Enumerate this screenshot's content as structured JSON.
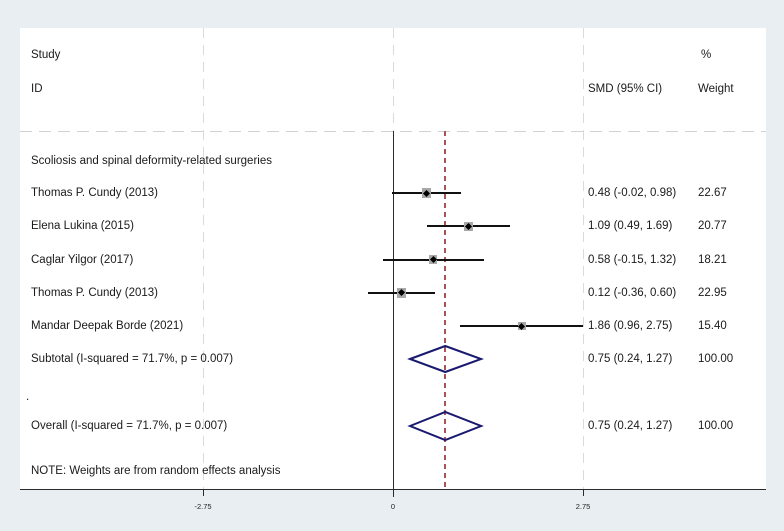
{
  "header": {
    "study_label": "Study",
    "id_label": "ID",
    "smd_ci_label": "SMD (95% CI)",
    "percent_label": "%",
    "weight_label": "Weight"
  },
  "note": {
    "text": "NOTE: Weights are from random effects analysis"
  },
  "colors": {
    "background": "#e8eef2",
    "plot_background": "#ffffff",
    "axis": "#2b2b2b",
    "gridline": "#d7dbde",
    "ci_line": "#111111",
    "weight_box": "#a8a8a8",
    "marker": "#000000",
    "pooled_diamond": "#191970",
    "reference_dash": "#a85454"
  },
  "chart_data": {
    "type": "forest",
    "title": "",
    "xlabel": "",
    "x_ticks": [
      -2.75,
      0,
      2.75
    ],
    "x_tick_labels": [
      "-2.75",
      "0",
      "2.75"
    ],
    "reference_line_x": 0,
    "overall_effect_line_x": 0.75,
    "group_label": "Scoliosis and spinal deformity-related surgeries",
    "studies": [
      {
        "id": "Thomas P. Cundy (2013)",
        "smd": 0.48,
        "ci_low": -0.02,
        "ci_high": 0.98,
        "smd_ci_label": "0.48 (-0.02, 0.98)",
        "weight": 22.67,
        "weight_label": "22.67"
      },
      {
        "id": "Elena Lukina (2015)",
        "smd": 1.09,
        "ci_low": 0.49,
        "ci_high": 1.69,
        "smd_ci_label": "1.09 (0.49, 1.69)",
        "weight": 20.77,
        "weight_label": "20.77"
      },
      {
        "id": "Caglar Yilgor (2017)",
        "smd": 0.58,
        "ci_low": -0.15,
        "ci_high": 1.32,
        "smd_ci_label": "0.58 (-0.15, 1.32)",
        "weight": 18.21,
        "weight_label": "18.21"
      },
      {
        "id": "Thomas P. Cundy (2013)",
        "smd": 0.12,
        "ci_low": -0.36,
        "ci_high": 0.6,
        "smd_ci_label": "0.12 (-0.36, 0.60)",
        "weight": 22.95,
        "weight_label": "22.95"
      },
      {
        "id": "Mandar Deepak Borde (2021)",
        "smd": 1.86,
        "ci_low": 0.96,
        "ci_high": 2.75,
        "smd_ci_label": "1.86 (0.96, 2.75)",
        "weight": 15.4,
        "weight_label": "15.40"
      }
    ],
    "subtotal": {
      "id": "Subtotal  (I-squared = 71.7%, p = 0.007)",
      "smd": 0.75,
      "ci_low": 0.24,
      "ci_high": 1.27,
      "smd_ci_label": "0.75 (0.24, 1.27)",
      "weight_label": "100.00"
    },
    "spacer_label": ".",
    "overall": {
      "id": "Overall  (I-squared = 71.7%, p = 0.007)",
      "smd": 0.75,
      "ci_low": 0.24,
      "ci_high": 1.27,
      "smd_ci_label": "0.75 (0.24, 1.27)",
      "weight_label": "100.00"
    }
  }
}
